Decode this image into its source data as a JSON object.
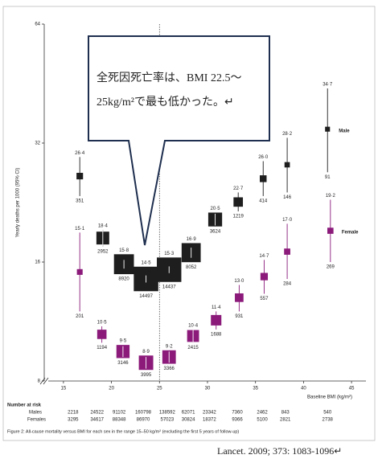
{
  "chart_data": {
    "type": "scatter",
    "y_label": "Yearly deaths per 1000 (95% CI)",
    "x_label": "Baseline BMI (kg/m²)",
    "xlim": [
      13,
      46.5
    ],
    "xticks": [
      15,
      20,
      25,
      30,
      35,
      40,
      45
    ],
    "ylim": [
      8,
      64
    ],
    "yticks": [
      8,
      16,
      32,
      64
    ],
    "log_y": true,
    "reference_x": 25,
    "series": [
      {
        "name": "Male",
        "color": "#1e1e1e",
        "x": [
          16.7,
          19.1,
          21.3,
          23.6,
          26.0,
          28.3,
          30.8,
          33.2,
          35.8,
          38.3,
          42.5
        ],
        "values": [
          26.4,
          18.4,
          15.8,
          14.5,
          15.3,
          16.9,
          20.5,
          22.7,
          26.0,
          28.2,
          34.7
        ],
        "value_labels": [
          "26·4",
          "18·4",
          "15·8",
          "14·5",
          "15·3",
          "16·9",
          "20·5",
          "22·7",
          "26·0",
          "28·2",
          "34·7"
        ],
        "ci_low": [
          23.5,
          17.5,
          15.4,
          14.2,
          15.0,
          16.4,
          19.8,
          21.5,
          23.5,
          24.0,
          27.0
        ],
        "ci_high": [
          29.5,
          19.3,
          16.2,
          14.8,
          15.6,
          17.4,
          21.2,
          24.0,
          28.8,
          33.0,
          44.0
        ],
        "counts": [
          351,
          2952,
          8920,
          14497,
          14437,
          8052,
          3624,
          1219,
          414,
          146,
          91
        ]
      },
      {
        "name": "Female",
        "color": "#8b1a7a",
        "x": [
          16.7,
          19.0,
          21.2,
          23.6,
          26.0,
          28.5,
          30.9,
          33.3,
          35.9,
          38.3,
          42.8
        ],
        "values": [
          15.1,
          10.5,
          9.5,
          8.9,
          9.2,
          10.4,
          11.4,
          13.0,
          14.7,
          17.0,
          19.2
        ],
        "value_labels": [
          "15·1",
          "10·5",
          "9·5",
          "8·9",
          "9·2",
          "10·4",
          "11·4",
          "13·0",
          "14·7",
          "17·0",
          "19·2"
        ],
        "ci_low": [
          12.0,
          10.0,
          9.2,
          8.6,
          8.9,
          10.0,
          10.8,
          12.0,
          13.3,
          14.5,
          16.0
        ],
        "ci_high": [
          19.0,
          11.0,
          9.8,
          9.2,
          9.5,
          10.8,
          12.0,
          14.0,
          16.2,
          20.0,
          23.0
        ],
        "counts": [
          201,
          1194,
          3146,
          3995,
          3366,
          2415,
          1688,
          931,
          557,
          284,
          269
        ]
      }
    ],
    "risk_table": {
      "title": "Number at risk",
      "x": [
        16.0,
        18.5,
        20.8,
        23.3,
        25.8,
        28.0,
        30.2,
        33.1,
        35.7,
        38.1,
        42.5
      ],
      "rows": [
        {
          "label": "Males",
          "values": [
            2218,
            24522,
            91102,
            160798,
            138592,
            62071,
            23342,
            7360,
            2462,
            843,
            540
          ]
        },
        {
          "label": "Females",
          "values": [
            3295,
            34617,
            88348,
            86970,
            57023,
            30824,
            18372,
            9366,
            5100,
            2821,
            2738
          ]
        }
      ]
    },
    "caption": "Figure 2: All-cause mortality versus BMI for each sex in the range 15–50 kg/m² (excluding the first 5 years of follow-up)",
    "callout": [
      "全死因死亡率は、BMI 22.5～",
      "25kg/m²で最も低かった。↵"
    ],
    "citation": "Lancet. 2009; 373: 1083-1096↵"
  }
}
